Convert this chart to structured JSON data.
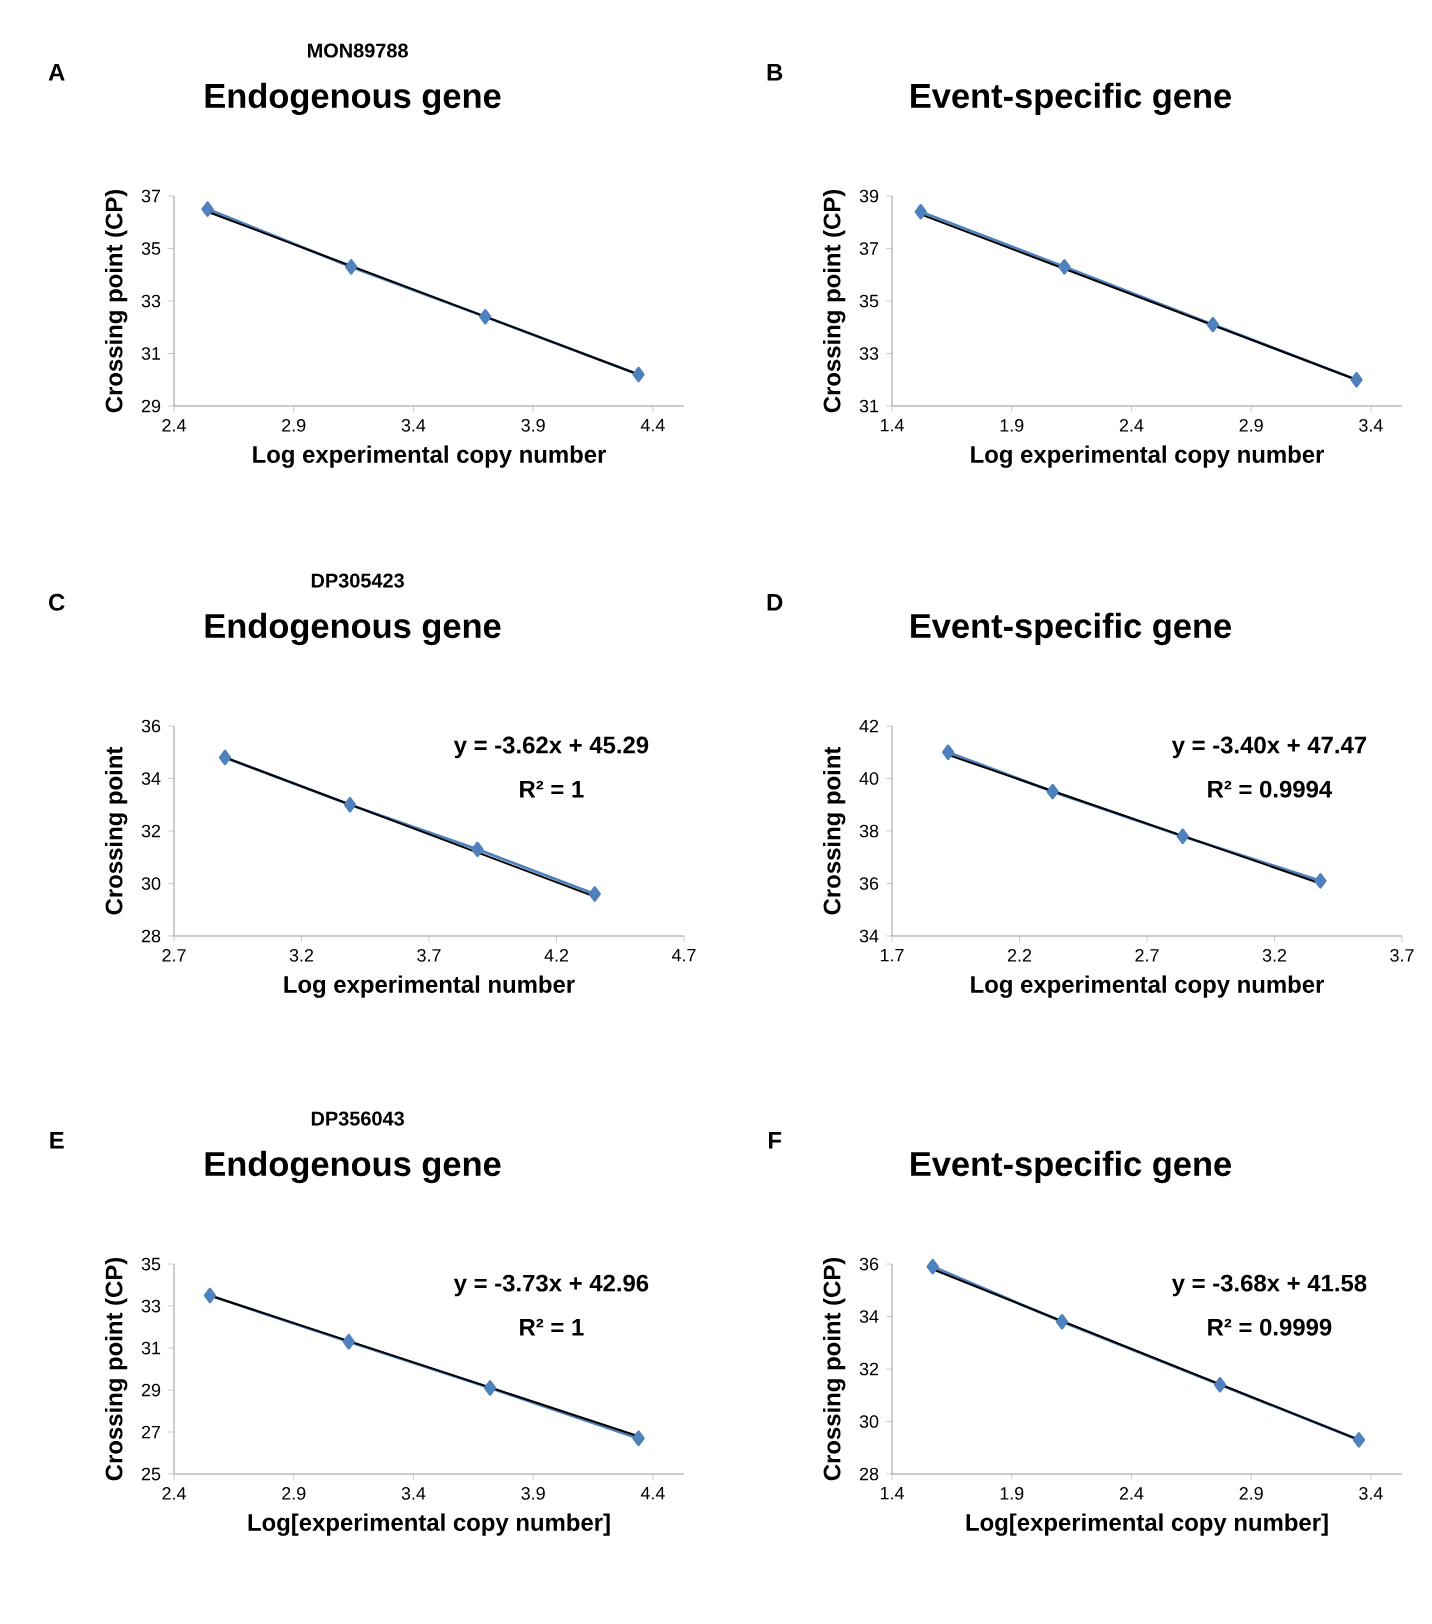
{
  "chart_data": [
    {
      "type": "line",
      "subtitle": "MON89788",
      "title": "Endogenous gene",
      "xlabel": "Log experimental copy number",
      "ylabel": "Crossing point (CP)",
      "annotations": [
        "A"
      ],
      "marker": "diamond",
      "xlim": [
        2.4,
        4.53
      ],
      "xticks": [
        2.4,
        2.9,
        3.4,
        3.9,
        4.4
      ],
      "ylim": [
        29,
        37
      ],
      "yticks": [
        29,
        31,
        33,
        35,
        37
      ],
      "series": [
        {
          "color": "#4f81bd",
          "x": [
            2.54,
            3.14,
            3.7,
            4.34
          ],
          "values": [
            36.5,
            34.3,
            32.4,
            30.2
          ]
        },
        {
          "type": "line",
          "marker": "none",
          "color": "#000000",
          "x": [
            2.54,
            4.34
          ],
          "values": [
            36.4,
            30.2
          ]
        }
      ]
    },
    {
      "type": "line",
      "title": "Event-specific gene",
      "xlabel": "Log experimental copy number",
      "ylabel": "Crossing point (CP)",
      "annotations": [
        "B"
      ],
      "marker": "diamond",
      "xlim": [
        1.4,
        3.53
      ],
      "xticks": [
        1.4,
        1.9,
        2.4,
        2.9,
        3.4
      ],
      "ylim": [
        31,
        39
      ],
      "yticks": [
        31,
        33,
        35,
        37,
        39
      ],
      "series": [
        {
          "color": "#4f81bd",
          "x": [
            1.52,
            2.12,
            2.74,
            3.34
          ],
          "values": [
            38.4,
            36.3,
            34.1,
            32.0
          ]
        },
        {
          "type": "line",
          "marker": "none",
          "color": "#000000",
          "x": [
            1.52,
            3.34
          ],
          "values": [
            38.3,
            32.0
          ]
        }
      ]
    },
    {
      "type": "line",
      "subtitle": "DP305423",
      "title": "Endogenous gene",
      "xlabel": "Log experimental number",
      "ylabel": "Crossing point",
      "annotations": [
        "C",
        "y = -3.62x + 45.29",
        "R² = 1"
      ],
      "marker": "diamond",
      "xlim": [
        2.7,
        4.7
      ],
      "xticks": [
        2.7,
        3.2,
        3.7,
        4.2,
        4.7
      ],
      "ylim": [
        28,
        36
      ],
      "yticks": [
        28,
        30,
        32,
        34,
        36
      ],
      "series": [
        {
          "color": "#4f81bd",
          "x": [
            2.9,
            3.39,
            3.89,
            4.35
          ],
          "values": [
            34.8,
            33.0,
            31.3,
            29.6
          ]
        },
        {
          "type": "line",
          "marker": "none",
          "color": "#000000",
          "x": [
            2.9,
            4.35
          ],
          "values": [
            34.8,
            29.5
          ]
        }
      ]
    },
    {
      "type": "line",
      "title": "Event-specific gene",
      "xlabel": "Log experimental copy number",
      "ylabel": "Crossing point",
      "annotations": [
        "D",
        "y = -3.40x + 47.47",
        "R² = 0.9994"
      ],
      "marker": "diamond",
      "xlim": [
        1.7,
        3.7
      ],
      "xticks": [
        1.7,
        2.2,
        2.7,
        3.2,
        3.7
      ],
      "ylim": [
        34,
        42
      ],
      "yticks": [
        34,
        36,
        38,
        40,
        42
      ],
      "series": [
        {
          "color": "#4f81bd",
          "x": [
            1.92,
            2.33,
            2.84,
            3.38
          ],
          "values": [
            41.0,
            39.5,
            37.8,
            36.1
          ]
        },
        {
          "type": "line",
          "marker": "none",
          "color": "#000000",
          "x": [
            1.92,
            3.38
          ],
          "values": [
            40.9,
            36.0
          ]
        }
      ]
    },
    {
      "type": "line",
      "subtitle": "DP356043",
      "title": "Endogenous gene",
      "xlabel": "Log[experimental copy number]",
      "ylabel": "Crossing point (CP)",
      "annotations": [
        "E",
        "y = -3.73x + 42.96",
        "R² = 1"
      ],
      "marker": "diamond",
      "xlim": [
        2.4,
        4.53
      ],
      "xticks": [
        2.4,
        2.9,
        3.4,
        3.9,
        4.4
      ],
      "ylim": [
        25,
        35
      ],
      "yticks": [
        25,
        27,
        29,
        31,
        33,
        35
      ],
      "series": [
        {
          "color": "#4f81bd",
          "x": [
            2.55,
            3.13,
            3.72,
            4.34
          ],
          "values": [
            33.5,
            31.3,
            29.1,
            26.7
          ]
        },
        {
          "type": "line",
          "marker": "none",
          "color": "#000000",
          "x": [
            2.55,
            4.34
          ],
          "values": [
            33.5,
            26.8
          ]
        }
      ]
    },
    {
      "type": "line",
      "title": "Event-specific gene",
      "xlabel": "Log[experimental copy number]",
      "ylabel": "Crossing point (CP)",
      "annotations": [
        "F",
        "y = -3.68x + 41.58",
        "R² = 0.9999"
      ],
      "marker": "diamond",
      "xlim": [
        1.4,
        3.53
      ],
      "xticks": [
        1.4,
        1.9,
        2.4,
        2.9,
        3.4
      ],
      "ylim": [
        28,
        36
      ],
      "yticks": [
        28,
        30,
        32,
        34,
        36
      ],
      "series": [
        {
          "color": "#4f81bd",
          "x": [
            1.57,
            2.11,
            2.77,
            3.35
          ],
          "values": [
            35.9,
            33.8,
            31.4,
            29.3
          ]
        },
        {
          "type": "line",
          "marker": "none",
          "color": "#000000",
          "x": [
            1.57,
            3.35
          ],
          "values": [
            35.8,
            29.3
          ]
        }
      ]
    }
  ]
}
